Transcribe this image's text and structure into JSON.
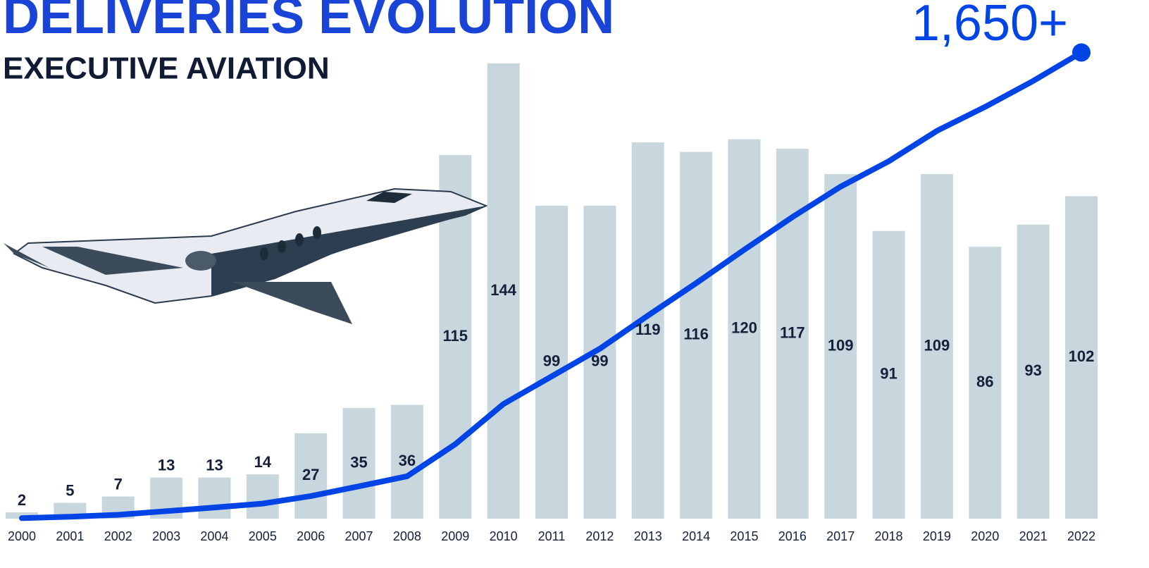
{
  "chart_data": {
    "type": "bar",
    "title": "DELIVERIES EVOLUTION",
    "subtitle": "EXECUTIVE AVIATION",
    "annotation": "1,650+",
    "categories": [
      "2000",
      "2001",
      "2002",
      "2003",
      "2004",
      "2005",
      "2006",
      "2007",
      "2008",
      "2009",
      "2010",
      "2011",
      "2012",
      "2013",
      "2014",
      "2015",
      "2016",
      "2017",
      "2018",
      "2019",
      "2020",
      "2021",
      "2022"
    ],
    "series": [
      {
        "type": "bar",
        "color": "#c8d6dd",
        "values": [
          2,
          5,
          7,
          13,
          13,
          14,
          27,
          35,
          36,
          115,
          144,
          99,
          99,
          119,
          116,
          120,
          117,
          109,
          91,
          109,
          86,
          93,
          102
        ]
      },
      {
        "type": "line",
        "color": "#0044e6",
        "axis": "y2",
        "values": [
          2,
          7,
          14,
          27,
          40,
          54,
          81,
          116,
          152,
          267,
          411,
          510,
          609,
          728,
          844,
          964,
          1081,
          1190,
          1281,
          1390,
          1476,
          1569,
          1671
        ]
      }
    ],
    "ylim": [
      0,
      150
    ],
    "y2lim": [
      0,
      1700
    ]
  }
}
